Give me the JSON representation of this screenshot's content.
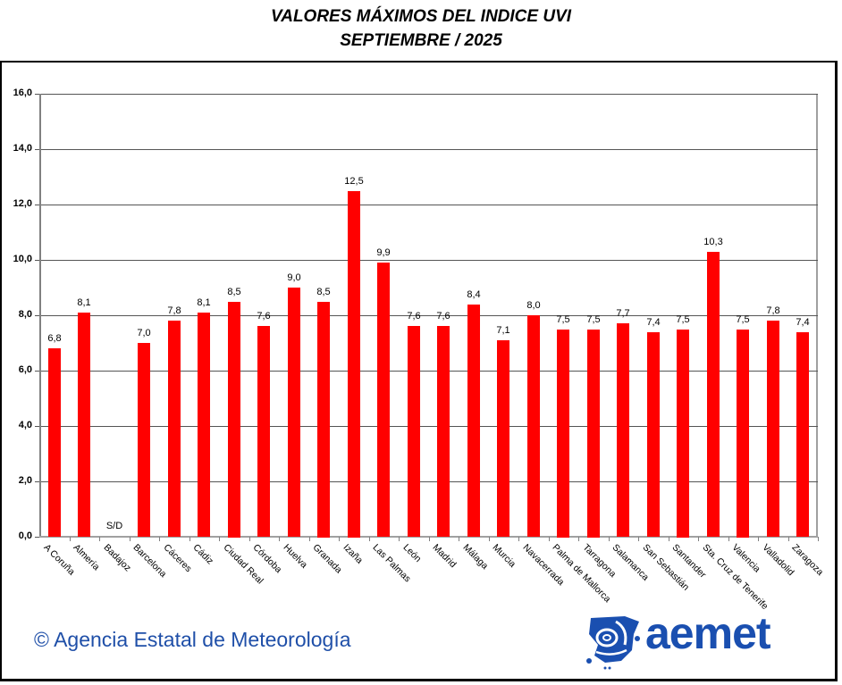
{
  "header": {
    "title_line1": "VALORES MÁXIMOS DEL INDICE  UVI",
    "title_line2": "SEPTIEMBRE / 2025"
  },
  "footer": {
    "copyright": "© Agencia Estatal de Meteorología",
    "logo_text": "aemet"
  },
  "colors": {
    "bar": "#ff0000",
    "footer_text": "#1f4fa8",
    "logo": "#1a4fb0"
  },
  "chart_data": {
    "type": "bar",
    "title": "VALORES MÁXIMOS DEL INDICE  UVI — SEPTIEMBRE / 2025",
    "xlabel": "",
    "ylabel": "",
    "ylim": [
      0,
      16
    ],
    "yticks": [
      "0,0",
      "2,0",
      "4,0",
      "6,0",
      "8,0",
      "10,0",
      "12,0",
      "14,0",
      "16,0"
    ],
    "grid": true,
    "legend": "none",
    "categories": [
      "A Coruña",
      "Almería",
      "Badajoz",
      "Barcelona",
      "Cáceres",
      "Cádiz",
      "Ciudad Real",
      "Córdoba",
      "Huelva",
      "Granada",
      "Izaña",
      "Las Palmas",
      "León",
      "Madrid",
      "Málaga",
      "Murcia",
      "Navacerrada",
      "Palma de Mallorca",
      "Tarragona",
      "Salamanca",
      "San Sebastián",
      "Santander",
      "Sta. Cruz de Tenerife",
      "Valencia",
      "Valladolid",
      "Zaragoza"
    ],
    "values": [
      6.8,
      8.1,
      null,
      7.0,
      7.8,
      8.1,
      8.5,
      7.6,
      9.0,
      8.5,
      12.5,
      9.9,
      7.6,
      7.6,
      8.4,
      7.1,
      8.0,
      7.5,
      7.5,
      7.7,
      7.4,
      7.5,
      10.3,
      7.5,
      7.8,
      7.4
    ],
    "value_labels": [
      "6,8",
      "8,1",
      "S/D",
      "7,0",
      "7,8",
      "8,1",
      "8,5",
      "7,6",
      "9,0",
      "8,5",
      "12,5",
      "9,9",
      "7,6",
      "7,6",
      "8,4",
      "7,1",
      "8,0",
      "7,5",
      "7,5",
      "7,7",
      "7,4",
      "7,5",
      "10,3",
      "7,5",
      "7,8",
      "7,4"
    ]
  }
}
